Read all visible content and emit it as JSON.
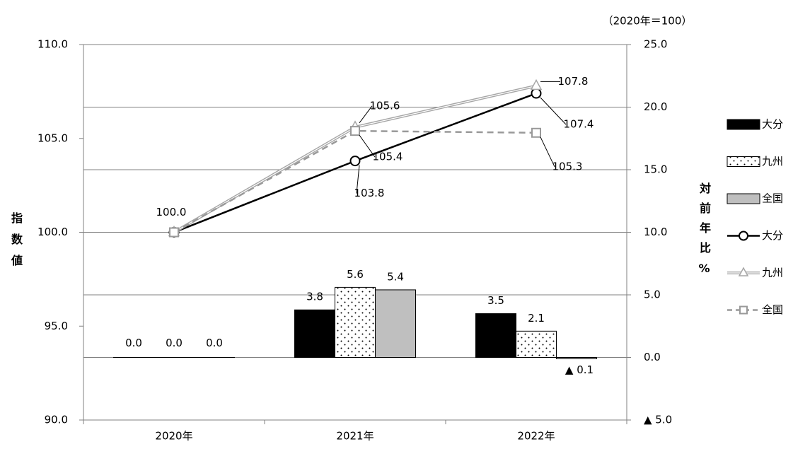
{
  "chart_data": {
    "type": "combo",
    "note": "（2020年＝100）",
    "y_label": "指数値",
    "y2_label": "対前年比%",
    "categories": [
      "2020年",
      "2021年",
      "2022年"
    ],
    "ylim": [
      90,
      110
    ],
    "yticks": [
      {
        "value": 90,
        "label": "90.0"
      },
      {
        "value": 95,
        "label": "95.0"
      },
      {
        "value": 100,
        "label": "100.0"
      },
      {
        "value": 105,
        "label": "105.0"
      },
      {
        "value": 110,
        "label": "110.0"
      }
    ],
    "y2lim": [
      -5,
      25
    ],
    "y2ticks": [
      {
        "value": -5,
        "label": "▲ 5.0"
      },
      {
        "value": 0,
        "label": "0.0"
      },
      {
        "value": 5,
        "label": "5.0"
      },
      {
        "value": 10,
        "label": "10.0"
      },
      {
        "value": 15,
        "label": "15.0"
      },
      {
        "value": 20,
        "label": "20.0"
      },
      {
        "value": 25,
        "label": "25.0"
      }
    ],
    "grid": true,
    "legend": "right",
    "series": [
      {
        "name": "大分",
        "type": "bar",
        "axis": "y2",
        "color": "#000000",
        "values": [
          0,
          3.8,
          3.5
        ],
        "value_labels": [
          "0.0",
          "3.8",
          "3.5"
        ]
      },
      {
        "name": "九州",
        "type": "bar",
        "axis": "y2",
        "color": "#ffffff",
        "pattern": "dots",
        "values": [
          0,
          5.6,
          2.1
        ],
        "value_labels": [
          "0.0",
          "5.6",
          "2.1"
        ]
      },
      {
        "name": "全国",
        "type": "bar",
        "axis": "y2",
        "color": "#bfbfbf",
        "values": [
          0,
          5.4,
          -0.1
        ],
        "value_labels": [
          "0.0",
          "5.4",
          "▲ 0.1"
        ]
      },
      {
        "name": "大分",
        "type": "line",
        "color": "#000000",
        "marker": "circle",
        "values": [
          100,
          103.8,
          107.4
        ],
        "value_labels": [
          "100.0",
          "103.8",
          "107.4"
        ]
      },
      {
        "name": "九州",
        "type": "line",
        "color": "#a6a6a6",
        "marker": "triangle",
        "double": true,
        "values": [
          100,
          105.6,
          107.8
        ],
        "value_labels": [
          null,
          "105.6",
          "107.8"
        ]
      },
      {
        "name": "全国",
        "type": "line",
        "color": "#999999",
        "marker": "square",
        "dash": true,
        "values": [
          100,
          105.4,
          105.3
        ],
        "value_labels": [
          null,
          "105.4",
          "105.3"
        ]
      }
    ]
  }
}
